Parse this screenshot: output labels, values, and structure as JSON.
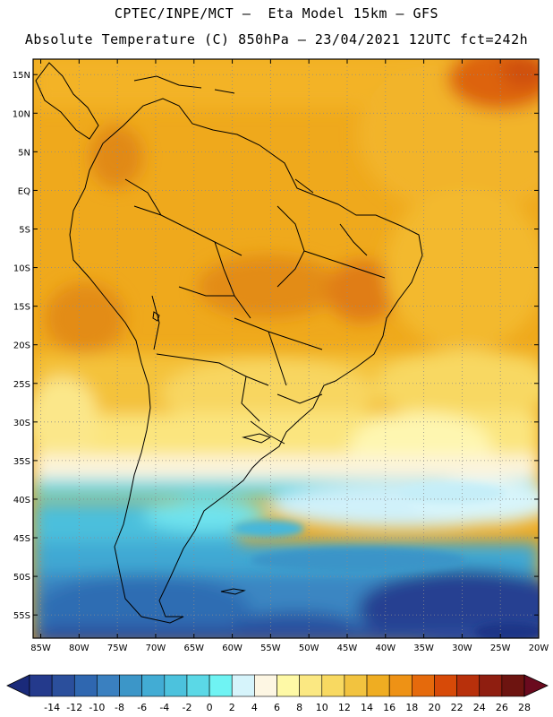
{
  "header": {
    "line1": "CPTEC/INPE/MCT –  Eta Model 15km – GFS",
    "line2": "Absolute Temperature (C) 850hPa – 23/04/2021 12UTC fct=242h"
  },
  "map": {
    "region": "South America",
    "lon_range": [
      -86,
      -20
    ],
    "lat_range": [
      -58,
      17
    ],
    "lat_labels": [
      "15N",
      "10N",
      "5N",
      "EQ",
      "5S",
      "10S",
      "15S",
      "20S",
      "25S",
      "30S",
      "35S",
      "40S",
      "45S",
      "50S",
      "55S"
    ],
    "lat_values": [
      15,
      10,
      5,
      0,
      -5,
      -10,
      -15,
      -20,
      -25,
      -30,
      -35,
      -40,
      -45,
      -50,
      -55
    ],
    "lon_labels": [
      "85W",
      "80W",
      "75W",
      "70W",
      "65W",
      "60W",
      "55W",
      "50W",
      "45W",
      "40W",
      "35W",
      "30W",
      "25W",
      "20W"
    ],
    "lon_values": [
      -85,
      -80,
      -75,
      -70,
      -65,
      -60,
      -55,
      -50,
      -45,
      -40,
      -35,
      -30,
      -25,
      -20
    ]
  },
  "colorbar": {
    "unit": "C",
    "labels": [
      "-14",
      "-12",
      "-10",
      "-8",
      "-6",
      "-4",
      "-2",
      "0",
      "2",
      "4",
      "6",
      "8",
      "10",
      "12",
      "14",
      "16",
      "18",
      "20",
      "22",
      "24",
      "26",
      "28"
    ],
    "colors": [
      "#243a8c",
      "#2b4f9c",
      "#2f67b0",
      "#3a80c0",
      "#3c96c8",
      "#42acd4",
      "#4cc2dd",
      "#5bd8e6",
      "#6ff3f3",
      "#d6f4fb",
      "#fdf6e3",
      "#fef9a6",
      "#fbe882",
      "#f8d961",
      "#f2c33f",
      "#efad22",
      "#ee9215",
      "#e56a0c",
      "#d74a08",
      "#b8300b",
      "#8f1e10",
      "#6d1410"
    ],
    "end_low_color": "#1a2a7a",
    "end_high_color": "#6a0a1e"
  }
}
